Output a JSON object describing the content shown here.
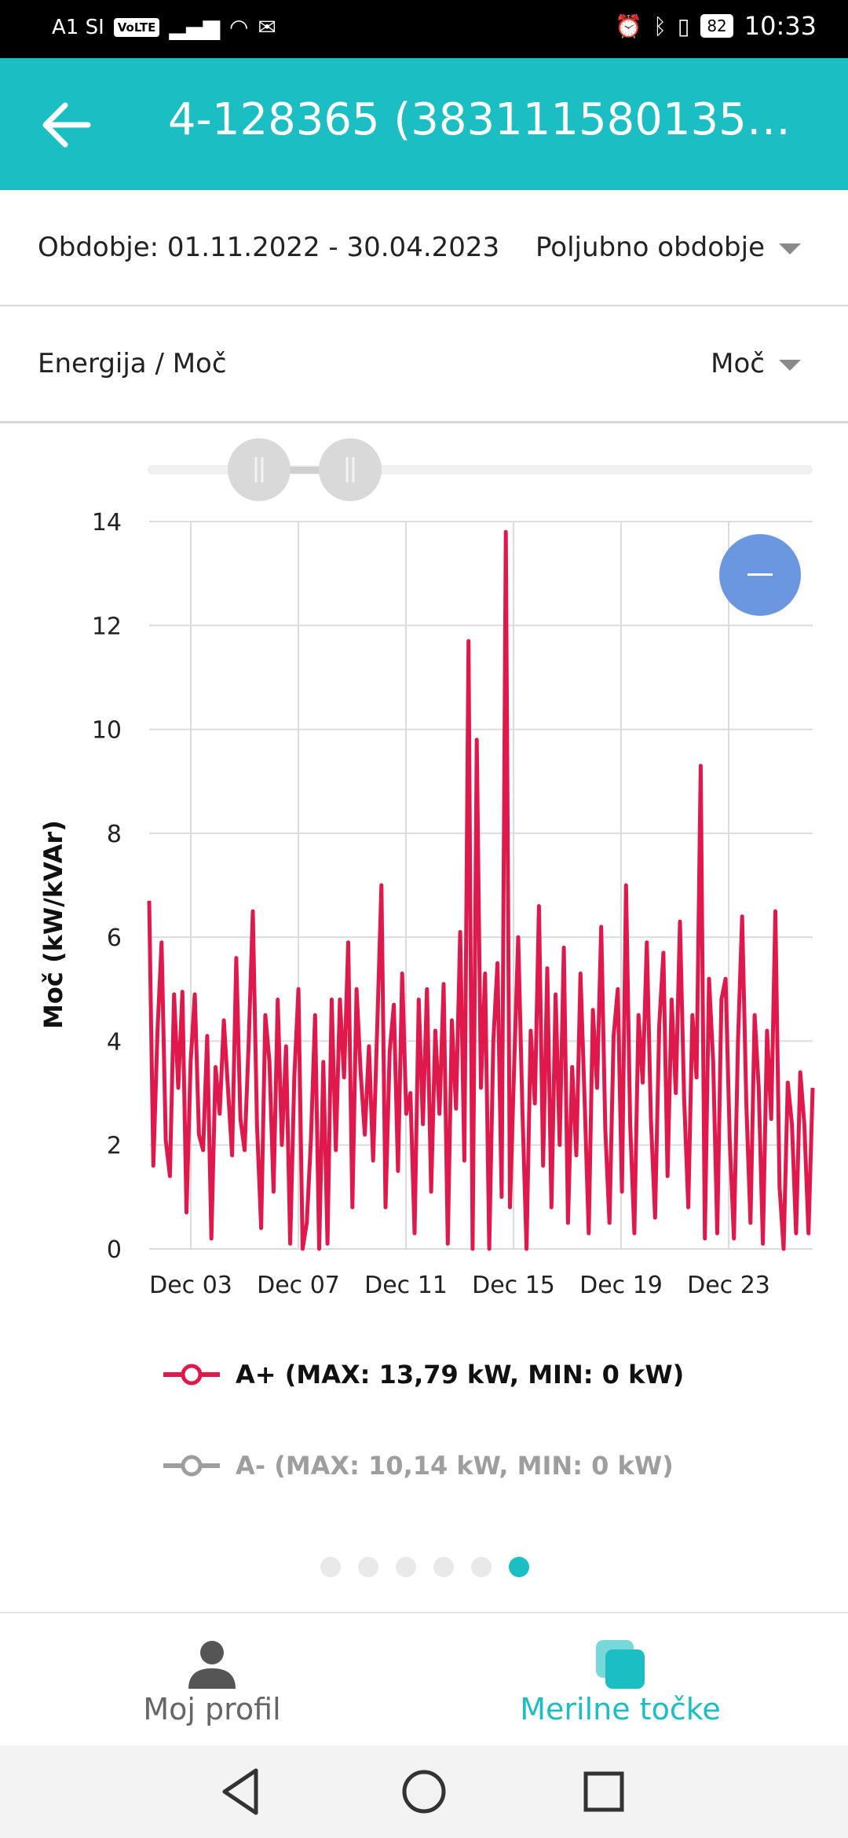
{
  "status_bar": {
    "carrier": "A1 SI",
    "volte": "VoLTE",
    "battery": "82",
    "time": "10:33"
  },
  "app_bar": {
    "title": "4-128365 (3831115801357..."
  },
  "period_row": {
    "label": "Obdobje: 01.11.2022 - 30.04.2023",
    "select_value": "Poljubno obdobje"
  },
  "mode_row": {
    "label": "Energija / Moč",
    "select_value": "Moč"
  },
  "chart": {
    "ylabel": "Moč (kW/kVAr)",
    "legend": [
      {
        "text": "A+ (MAX: 13,79 kW, MIN: 0 kW)",
        "color": "#e0194c",
        "active": true
      },
      {
        "text": "A- (MAX: 10,14 kW, MIN: 0 kW)",
        "color": "#9e9e9e",
        "active": false
      }
    ],
    "page_dots": 6,
    "active_dot": 5
  },
  "chart_data": {
    "type": "line",
    "series": [
      {
        "name": "A+ (MAX: 13,79 kW, MIN: 0 kW)",
        "color": "#e0194c",
        "values": [
          6.7,
          1.6,
          4.2,
          5.9,
          2.1,
          1.4,
          4.9,
          3.1,
          4.95,
          0.7,
          3.6,
          4.9,
          2.2,
          1.9,
          4.1,
          0.2,
          3.5,
          2.6,
          4.4,
          3.1,
          1.8,
          5.6,
          2.5,
          1.9,
          4.0,
          6.5,
          2.4,
          0.4,
          4.5,
          3.6,
          1.1,
          4.8,
          2.0,
          3.9,
          0.1,
          3.3,
          5.0,
          0.0,
          0.5,
          2.1,
          4.5,
          0.0,
          3.6,
          0.1,
          4.8,
          1.9,
          4.8,
          3.3,
          5.9,
          0.8,
          5.0,
          3.4,
          2.2,
          3.9,
          1.7,
          4.3,
          7.0,
          0.8,
          3.8,
          4.7,
          1.5,
          5.3,
          2.6,
          3.0,
          0.3,
          4.8,
          2.4,
          5.0,
          1.1,
          4.2,
          2.6,
          5.1,
          0.1,
          4.4,
          2.7,
          6.1,
          1.7,
          11.7,
          0.0,
          9.8,
          3.1,
          5.3,
          0.0,
          4.0,
          5.5,
          1.0,
          13.8,
          0.8,
          3.5,
          6.0,
          2.7,
          0.0,
          4.2,
          2.8,
          6.6,
          1.6,
          5.4,
          0.8,
          4.9,
          2.0,
          5.8,
          0.5,
          3.5,
          1.8,
          5.3,
          2.9,
          0.3,
          4.6,
          3.1,
          6.2,
          2.3,
          0.5,
          4.1,
          5.0,
          1.1,
          7.0,
          2.4,
          0.3,
          4.5,
          3.2,
          5.9,
          2.5,
          0.6,
          4.3,
          5.7,
          1.4,
          4.8,
          3.0,
          6.3,
          2.9,
          0.8,
          4.5,
          3.3,
          9.3,
          0.2,
          5.2,
          3.6,
          0.3,
          4.8,
          5.2,
          2.1,
          0.2,
          4.0,
          6.4,
          2.8,
          0.5,
          4.5,
          3.1,
          0.1,
          4.2,
          2.5,
          6.5,
          1.2,
          0.0,
          3.2,
          2.4,
          0.3,
          3.4,
          2.4,
          0.3,
          3.1
        ]
      }
    ],
    "x_tick_labels": [
      "Dec 03",
      "Dec 07",
      "Dec 11",
      "Dec 15",
      "Dec 19",
      "Dec 23"
    ],
    "y_ticks": [
      0,
      2,
      4,
      6,
      8,
      10,
      12,
      14
    ],
    "ylim": [
      0,
      14
    ],
    "grid": true,
    "xlabel": "",
    "ylabel": "Moč (kW/kVAr)"
  },
  "bottom_nav": {
    "items": [
      {
        "label": "Moj profil",
        "active": false
      },
      {
        "label": "Merilne točke",
        "active": true
      }
    ]
  },
  "colors": {
    "accent": "#1bbec2",
    "series_a_plus": "#e0194c",
    "zoom_button": "#6b97e0"
  }
}
